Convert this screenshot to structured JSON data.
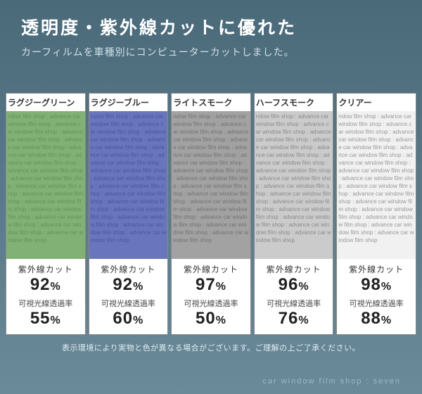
{
  "header": {
    "title": "透明度・紫外線カットに優れた",
    "subtitle": "カーフィルムを車種別にコンピューターカットしました。"
  },
  "watermark_text": "film shop : advance car window film shop : advance car window film shop : advance car window film shop",
  "swatch_fill_text": "ndow film shop : advance car window film shop : advance car window film shop : advance car window film shop : advance car window film shop : advance car window film shop : advance car window film shop : advance car window film shop : advance car window film shop : advance car window film shop : advance car window film shop : advance car window film shop : advance car window film shop : advance car window film shop : advance car window film shop : advance car window film shop",
  "stat_labels": {
    "uv": "紫外線カット",
    "vlt": "可視光線透過率"
  },
  "cards": [
    {
      "name": "ラグジーグリーン",
      "color": "#5a9a4a",
      "opacity": 0.75,
      "uv": "92",
      "vlt": "55"
    },
    {
      "name": "ラグジーブルー",
      "color": "#3a4aa8",
      "opacity": 0.75,
      "uv": "92",
      "vlt": "60"
    },
    {
      "name": "ライトスモーク",
      "color": "#6a6a6a",
      "opacity": 0.6,
      "uv": "97",
      "vlt": "50"
    },
    {
      "name": "ハーフスモーク",
      "color": "#9a9a9a",
      "opacity": 0.45,
      "uv": "96",
      "vlt": "76"
    },
    {
      "name": "クリアー",
      "color": "#e8e8e8",
      "opacity": 0.25,
      "uv": "98",
      "vlt": "88"
    }
  ],
  "disclaimer": "表示環境により実物と色が異なる場合がございます。ご理解の上ご了承ください。",
  "footer": "car window film shop  :  seven"
}
